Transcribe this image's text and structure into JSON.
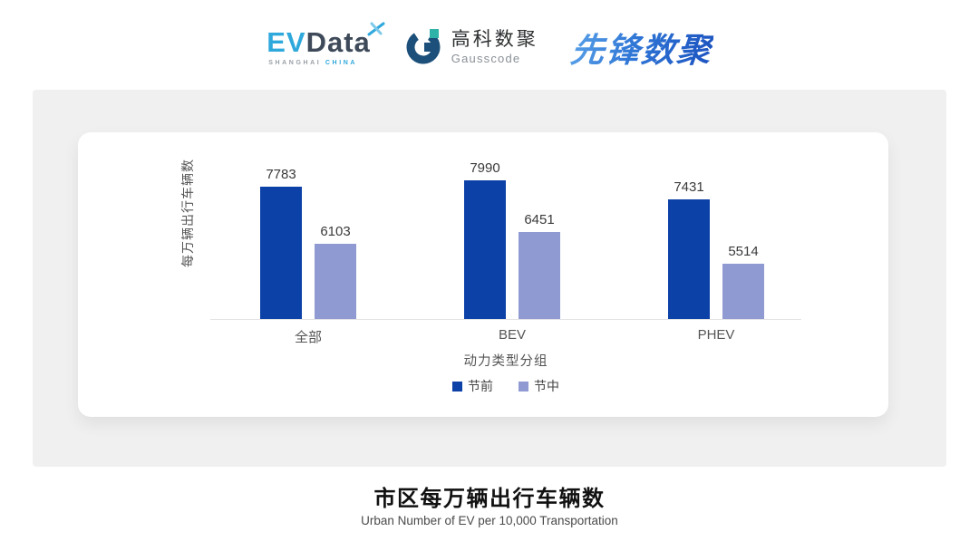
{
  "header": {
    "evdata_logo": {
      "ev": "EV",
      "data": "Data",
      "sub_shanghai": "SHANGHAI",
      "sub_china": "CHINA"
    },
    "gausscode_logo": {
      "cn": "高科数聚",
      "en": "Gausscode"
    },
    "pioneer_logo": {
      "text": "先锋数聚"
    }
  },
  "colors": {
    "evdata_blue": "#2fa8dc",
    "evdata_dark": "#3e4a59",
    "gausscode_navy": "#1c4f79",
    "gausscode_teal": "#2fb3a9",
    "pioneer_blue": "#2f76d6",
    "panel_gray": "#f0f0f1"
  },
  "chart_data": {
    "type": "bar",
    "title": "市区每万辆出行车辆数",
    "subtitle": "Urban Number of EV per 10,000 Transportation",
    "categories": [
      "全部",
      "BEV",
      "PHEV"
    ],
    "series": [
      {
        "name": "节前",
        "color": "#0c41a8",
        "values": [
          7783,
          7990,
          7431
        ]
      },
      {
        "name": "节中",
        "color": "#8f9ad3",
        "values": [
          6103,
          6451,
          5514
        ]
      }
    ],
    "xlabel": "动力类型分组",
    "ylabel": "每万辆出行车辆数",
    "ylim": [
      3900,
      8100
    ],
    "grid": false,
    "legend_position": "bottom",
    "bar_labels": true
  }
}
